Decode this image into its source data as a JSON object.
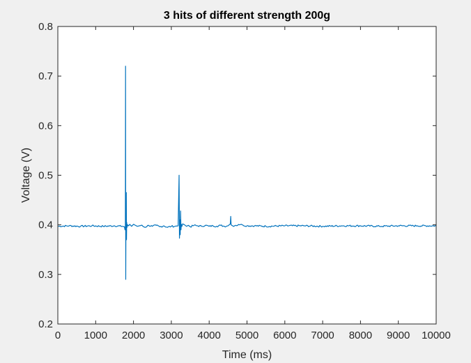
{
  "chart_data": {
    "type": "line",
    "title": "3 hits of different strength 200g",
    "xlabel": "Time (ms)",
    "ylabel": "Voltage (V)",
    "xlim": [
      0,
      10000
    ],
    "ylim": [
      0.2,
      0.8
    ],
    "xticks": [
      0,
      1000,
      2000,
      3000,
      4000,
      5000,
      6000,
      7000,
      8000,
      9000,
      10000
    ],
    "yticks": [
      0.2,
      0.3,
      0.4,
      0.5,
      0.6,
      0.7,
      0.8
    ],
    "grid": false,
    "line_color": "#0072bd",
    "series": [
      {
        "x": [
          0,
          300,
          600,
          900,
          1200,
          1500,
          1700,
          1760,
          1775,
          1785,
          1790,
          1795,
          1800,
          1805,
          1810,
          1815,
          1820,
          1830,
          1845,
          1870,
          1900,
          1950,
          2000,
          2050,
          2100,
          2200,
          2300,
          2400,
          2500,
          2600,
          2700,
          2800,
          2900,
          3000,
          3100,
          3180,
          3205,
          3215,
          3225,
          3235,
          3245,
          3255,
          3265,
          3280,
          3300,
          3350,
          3400,
          3450,
          3500,
          3600,
          3700,
          3800,
          3900,
          4000,
          4100,
          4200,
          4300,
          4400,
          4500,
          4560,
          4570,
          4580,
          4595,
          4620,
          4700,
          4800,
          4850,
          4900,
          5000,
          5200,
          5500,
          6000,
          6500,
          7000,
          7500,
          8000,
          8500,
          9000,
          9500,
          10000
        ],
        "y": [
          0.397,
          0.398,
          0.397,
          0.398,
          0.397,
          0.398,
          0.397,
          0.396,
          0.39,
          0.395,
          0.72,
          0.29,
          0.41,
          0.46,
          0.465,
          0.37,
          0.405,
          0.395,
          0.4,
          0.398,
          0.401,
          0.397,
          0.401,
          0.399,
          0.397,
          0.399,
          0.395,
          0.399,
          0.397,
          0.399,
          0.396,
          0.398,
          0.395,
          0.397,
          0.397,
          0.398,
          0.5,
          0.373,
          0.41,
          0.38,
          0.428,
          0.39,
          0.401,
          0.397,
          0.402,
          0.4,
          0.397,
          0.399,
          0.396,
          0.399,
          0.398,
          0.397,
          0.399,
          0.397,
          0.398,
          0.397,
          0.399,
          0.397,
          0.398,
          0.402,
          0.417,
          0.4,
          0.399,
          0.398,
          0.399,
          0.4,
          0.401,
          0.399,
          0.398,
          0.398,
          0.397,
          0.398,
          0.398,
          0.397,
          0.398,
          0.398,
          0.397,
          0.398,
          0.398,
          0.398
        ]
      }
    ]
  }
}
